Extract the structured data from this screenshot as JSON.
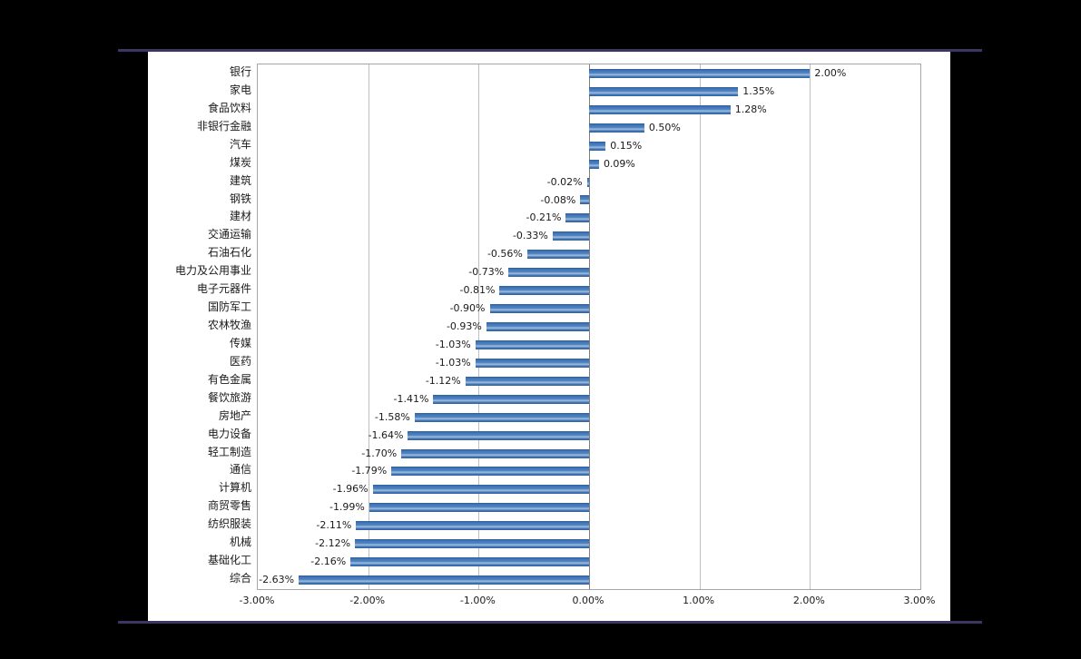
{
  "window": {
    "background_color": "#000000",
    "panel_color": "#FFFFFF",
    "accent_line_color": "#3D3663"
  },
  "chart_data": {
    "type": "bar",
    "orientation": "horizontal",
    "title": "",
    "xlabel": "",
    "ylabel": "",
    "categories": [
      "银行",
      "家电",
      "食品饮料",
      "非银行金融",
      "汽车",
      "煤炭",
      "建筑",
      "钢铁",
      "建材",
      "交通运输",
      "石油石化",
      "电力及公用事业",
      "电子元器件",
      "国防军工",
      "农林牧渔",
      "传媒",
      "医药",
      "有色金属",
      "餐饮旅游",
      "房地产",
      "电力设备",
      "轻工制造",
      "通信",
      "计算机",
      "商贸零售",
      "纺织服装",
      "机械",
      "基础化工",
      "综合"
    ],
    "values": [
      2.0,
      1.35,
      1.28,
      0.5,
      0.15,
      0.09,
      -0.02,
      -0.08,
      -0.21,
      -0.33,
      -0.56,
      -0.73,
      -0.81,
      -0.9,
      -0.93,
      -1.03,
      -1.03,
      -1.12,
      -1.41,
      -1.58,
      -1.64,
      -1.7,
      -1.79,
      -1.96,
      -1.99,
      -2.11,
      -2.12,
      -2.16,
      -2.63
    ],
    "data_labels": [
      "2.00%",
      "1.35%",
      "1.28%",
      "0.50%",
      "0.15%",
      "0.09%",
      "-0.02%",
      "-0.08%",
      "-0.21%",
      "-0.33%",
      "-0.56%",
      "-0.73%",
      "-0.81%",
      "-0.90%",
      "-0.93%",
      "-1.03%",
      "-1.03%",
      "-1.12%",
      "-1.41%",
      "-1.58%",
      "-1.64%",
      "-1.70%",
      "-1.79%",
      "-1.96%",
      "-1.99%",
      "-2.11%",
      "-2.12%",
      "-2.16%",
      "-2.63%"
    ],
    "x_ticks": [
      "-3.00%",
      "-2.00%",
      "-1.00%",
      "0.00%",
      "1.00%",
      "2.00%",
      "3.00%"
    ],
    "xlim": [
      -3,
      3
    ],
    "grid": true,
    "legend": "none",
    "bar_color": "#4478BA",
    "gridline_color": "#BFBFBF",
    "zero_axis_color": "#7F7F7F"
  }
}
